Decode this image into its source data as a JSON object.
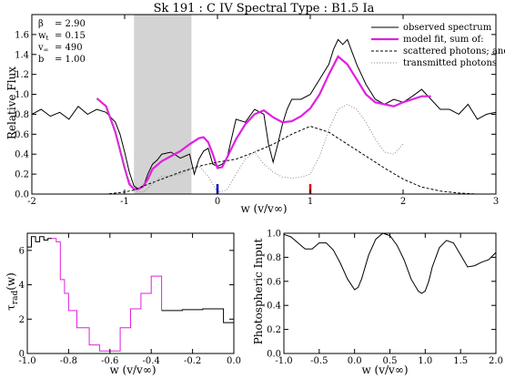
{
  "figure_title": "Sk 191 : C IV      Spectral Type : B1.5 Ia",
  "chart_data": [
    {
      "type": "line",
      "id": "main",
      "title": "Sk 191 : C IV      Spectral Type : B1.5 Ia",
      "xlabel": "w (v/v∞)",
      "ylabel": "Relative Flux",
      "xlim": [
        -2,
        3
      ],
      "ylim": [
        0,
        1.8
      ],
      "xticks": [
        -2,
        -1,
        0,
        1,
        2,
        3
      ],
      "xtick_labels": [
        "-2",
        "-1",
        "0",
        "1",
        "2",
        "3"
      ],
      "yticks": [
        0.0,
        0.2,
        0.4,
        0.6,
        0.8,
        1.0,
        1.2,
        1.4,
        1.6,
        1.8
      ],
      "ytick_labels": [
        "0.0",
        "0.2",
        "0.4",
        "0.6",
        "0.8",
        "1.0",
        "1.2",
        "1.4",
        "1.6",
        ""
      ],
      "parameters": [
        {
          "label": "β",
          "value": "= 2.90"
        },
        {
          "label": "w",
          "sub": "t",
          "value": "= 0.15"
        },
        {
          "label": "v",
          "sub": "∞",
          "value": "= 490"
        },
        {
          "label": "b",
          "value": "= 1.00"
        }
      ],
      "shaded_region": [
        -0.9,
        -0.28
      ],
      "markers": [
        {
          "x": 0,
          "color": "#0000dd"
        },
        {
          "x": 1,
          "color": "#dd0000"
        }
      ],
      "legend": {
        "placement": "top-right",
        "entries": [
          "observed spectrum",
          "model fit, sum of:",
          "scattered photons; and",
          "transmitted photons"
        ]
      },
      "series": [
        {
          "name": "observed spectrum",
          "color": "#000000",
          "x": [
            -2,
            -1.9,
            -1.8,
            -1.7,
            -1.6,
            -1.5,
            -1.4,
            -1.3,
            -1.2,
            -1.1,
            -1.05,
            -1.0,
            -0.95,
            -0.9,
            -0.85,
            -0.8,
            -0.75,
            -0.7,
            -0.65,
            -0.6,
            -0.5,
            -0.4,
            -0.3,
            -0.25,
            -0.2,
            -0.15,
            -0.1,
            -0.05,
            0.0,
            0.05,
            0.1,
            0.15,
            0.2,
            0.3,
            0.4,
            0.5,
            0.55,
            0.6,
            0.65,
            0.7,
            0.75,
            0.8,
            0.9,
            1.0,
            1.1,
            1.2,
            1.25,
            1.3,
            1.35,
            1.4,
            1.5,
            1.6,
            1.7,
            1.8,
            1.9,
            2.0,
            2.1,
            2.2,
            2.3,
            2.4,
            2.5,
            2.6,
            2.7,
            2.8,
            2.9,
            3.0
          ],
          "y": [
            0.8,
            0.85,
            0.78,
            0.82,
            0.75,
            0.88,
            0.8,
            0.85,
            0.82,
            0.72,
            0.6,
            0.42,
            0.22,
            0.08,
            0.05,
            0.07,
            0.2,
            0.3,
            0.34,
            0.4,
            0.42,
            0.36,
            0.4,
            0.2,
            0.35,
            0.43,
            0.46,
            0.3,
            0.28,
            0.3,
            0.35,
            0.55,
            0.75,
            0.72,
            0.85,
            0.8,
            0.5,
            0.32,
            0.5,
            0.7,
            0.85,
            0.95,
            0.95,
            1.0,
            1.15,
            1.3,
            1.45,
            1.55,
            1.5,
            1.55,
            1.3,
            1.1,
            0.95,
            0.9,
            0.95,
            0.92,
            0.98,
            1.05,
            0.95,
            0.85,
            0.85,
            0.8,
            0.9,
            0.75,
            0.8,
            0.82
          ]
        },
        {
          "name": "model fit, sum of:",
          "color": "#e020e0",
          "x": [
            -1.3,
            -1.2,
            -1.1,
            -1.0,
            -0.95,
            -0.9,
            -0.85,
            -0.8,
            -0.75,
            -0.7,
            -0.6,
            -0.5,
            -0.4,
            -0.3,
            -0.2,
            -0.15,
            -0.1,
            -0.05,
            0.0,
            0.05,
            0.1,
            0.2,
            0.3,
            0.4,
            0.5,
            0.6,
            0.7,
            0.8,
            0.9,
            1.0,
            1.1,
            1.2,
            1.3,
            1.4,
            1.5,
            1.6,
            1.7,
            1.8,
            1.9,
            2.0,
            2.1,
            2.2,
            2.3
          ],
          "y": [
            0.96,
            0.88,
            0.62,
            0.26,
            0.1,
            0.05,
            0.05,
            0.08,
            0.15,
            0.25,
            0.33,
            0.38,
            0.43,
            0.5,
            0.56,
            0.57,
            0.52,
            0.4,
            0.26,
            0.27,
            0.36,
            0.55,
            0.7,
            0.8,
            0.84,
            0.77,
            0.72,
            0.73,
            0.78,
            0.86,
            1.0,
            1.2,
            1.38,
            1.3,
            1.15,
            1.0,
            0.92,
            0.9,
            0.88,
            0.92,
            0.95,
            0.98,
            0.98
          ]
        },
        {
          "name": "scattered photons; and",
          "color": "#000000",
          "dash": "3,2",
          "x": [
            -2,
            -1.5,
            -1.2,
            -1.0,
            -0.9,
            -0.8,
            -0.6,
            -0.4,
            -0.2,
            0.0,
            0.2,
            0.4,
            0.6,
            0.8,
            1.0,
            1.2,
            1.4,
            1.6,
            1.8,
            2.0,
            2.2,
            2.4,
            2.6,
            2.8,
            3.0
          ],
          "y": [
            0.0,
            0.0,
            0.0,
            0.02,
            0.04,
            0.08,
            0.15,
            0.22,
            0.28,
            0.32,
            0.35,
            0.42,
            0.5,
            0.6,
            0.68,
            0.62,
            0.5,
            0.38,
            0.26,
            0.15,
            0.07,
            0.03,
            0.01,
            0.0,
            0.0
          ]
        },
        {
          "name": "transmitted photons",
          "color": "#888888",
          "dash": "1,2",
          "x": [
            -1.3,
            -1.2,
            -1.1,
            -1.0,
            -0.9,
            -0.85,
            -0.8,
            -0.7,
            -0.6,
            -0.5,
            -0.4,
            -0.3,
            -0.2,
            -0.1,
            0.0,
            0.1,
            0.2,
            0.3,
            0.4,
            0.5,
            0.6,
            0.7,
            0.8,
            0.9,
            1.0,
            1.1,
            1.2,
            1.3,
            1.4,
            1.5,
            1.6,
            1.7,
            1.8,
            1.9,
            2.0
          ],
          "y": [
            0.96,
            0.88,
            0.62,
            0.24,
            0.04,
            0.02,
            0.02,
            0.1,
            0.18,
            0.18,
            0.2,
            0.24,
            0.28,
            0.18,
            0.02,
            0.04,
            0.2,
            0.35,
            0.42,
            0.3,
            0.22,
            0.17,
            0.16,
            0.17,
            0.2,
            0.38,
            0.65,
            0.85,
            0.9,
            0.85,
            0.72,
            0.55,
            0.42,
            0.4,
            0.5
          ]
        }
      ]
    },
    {
      "type": "line",
      "id": "tau",
      "xlabel": "w (v/v∞)",
      "ylabel": "τrad(w)",
      "xlim": [
        -1.0,
        0.0
      ],
      "ylim": [
        0,
        7
      ],
      "xticks": [
        -1.0,
        -0.8,
        -0.6,
        -0.4,
        -0.2,
        0.0
      ],
      "xtick_labels": [
        "-1.0",
        "-0.8",
        "-0.6",
        "-0.4",
        "-0.2",
        "0.0"
      ],
      "yticks": [
        0,
        2,
        4,
        6
      ],
      "ytick_labels": [
        "0",
        "2",
        "4",
        "6"
      ],
      "series": [
        {
          "name": "",
          "color": "#000000",
          "step": true,
          "x": [
            -1.0,
            -0.98,
            -0.96,
            -0.94,
            -0.92,
            -0.9,
            -0.88
          ],
          "y": [
            6.2,
            6.8,
            6.5,
            6.8,
            6.6,
            6.7,
            6.7
          ]
        },
        {
          "name": "",
          "color": "#e020e0",
          "step": true,
          "x": [
            -0.88,
            -0.86,
            -0.84,
            -0.82,
            -0.8,
            -0.76,
            -0.7,
            -0.65,
            -0.55,
            -0.5,
            -0.45,
            -0.4,
            -0.35
          ],
          "y": [
            6.7,
            6.5,
            4.3,
            3.5,
            2.5,
            1.5,
            0.5,
            0.15,
            1.5,
            2.6,
            3.5,
            4.5,
            2.5
          ]
        },
        {
          "name": "",
          "color": "#000000",
          "step": true,
          "x": [
            -0.35,
            -0.25,
            -0.15,
            -0.05,
            0.0
          ],
          "y": [
            2.5,
            2.55,
            2.6,
            1.8,
            1.8
          ]
        }
      ]
    },
    {
      "type": "line",
      "id": "photo",
      "xlabel": "w (v/v∞)",
      "ylabel": "Photospheric Input",
      "xlim": [
        -1.0,
        2.0
      ],
      "ylim": [
        0.0,
        1.0
      ],
      "xticks": [
        -1.0,
        -0.5,
        0.0,
        0.5,
        1.0,
        1.5,
        2.0
      ],
      "xtick_labels": [
        "-1.0",
        "-0.5",
        "0.0",
        "0.5",
        "1.0",
        "1.5",
        "2.0"
      ],
      "yticks": [
        0.0,
        0.2,
        0.4,
        0.6,
        0.8,
        1.0
      ],
      "ytick_labels": [
        "0.0",
        "0.2",
        "0.4",
        "0.6",
        "0.8",
        "1.0"
      ],
      "series": [
        {
          "name": "",
          "color": "#000000",
          "x": [
            -1.0,
            -0.9,
            -0.8,
            -0.7,
            -0.6,
            -0.5,
            -0.4,
            -0.3,
            -0.2,
            -0.1,
            0.0,
            0.05,
            0.1,
            0.2,
            0.3,
            0.4,
            0.5,
            0.6,
            0.7,
            0.8,
            0.9,
            0.95,
            1.0,
            1.05,
            1.1,
            1.2,
            1.3,
            1.4,
            1.5,
            1.6,
            1.7,
            1.8,
            1.9,
            2.0
          ],
          "y": [
            0.99,
            0.97,
            0.92,
            0.87,
            0.87,
            0.92,
            0.92,
            0.86,
            0.75,
            0.62,
            0.53,
            0.55,
            0.62,
            0.82,
            0.95,
            1.0,
            0.98,
            0.9,
            0.78,
            0.62,
            0.52,
            0.5,
            0.52,
            0.6,
            0.72,
            0.88,
            0.94,
            0.92,
            0.82,
            0.72,
            0.73,
            0.76,
            0.78,
            0.84
          ]
        }
      ]
    }
  ]
}
